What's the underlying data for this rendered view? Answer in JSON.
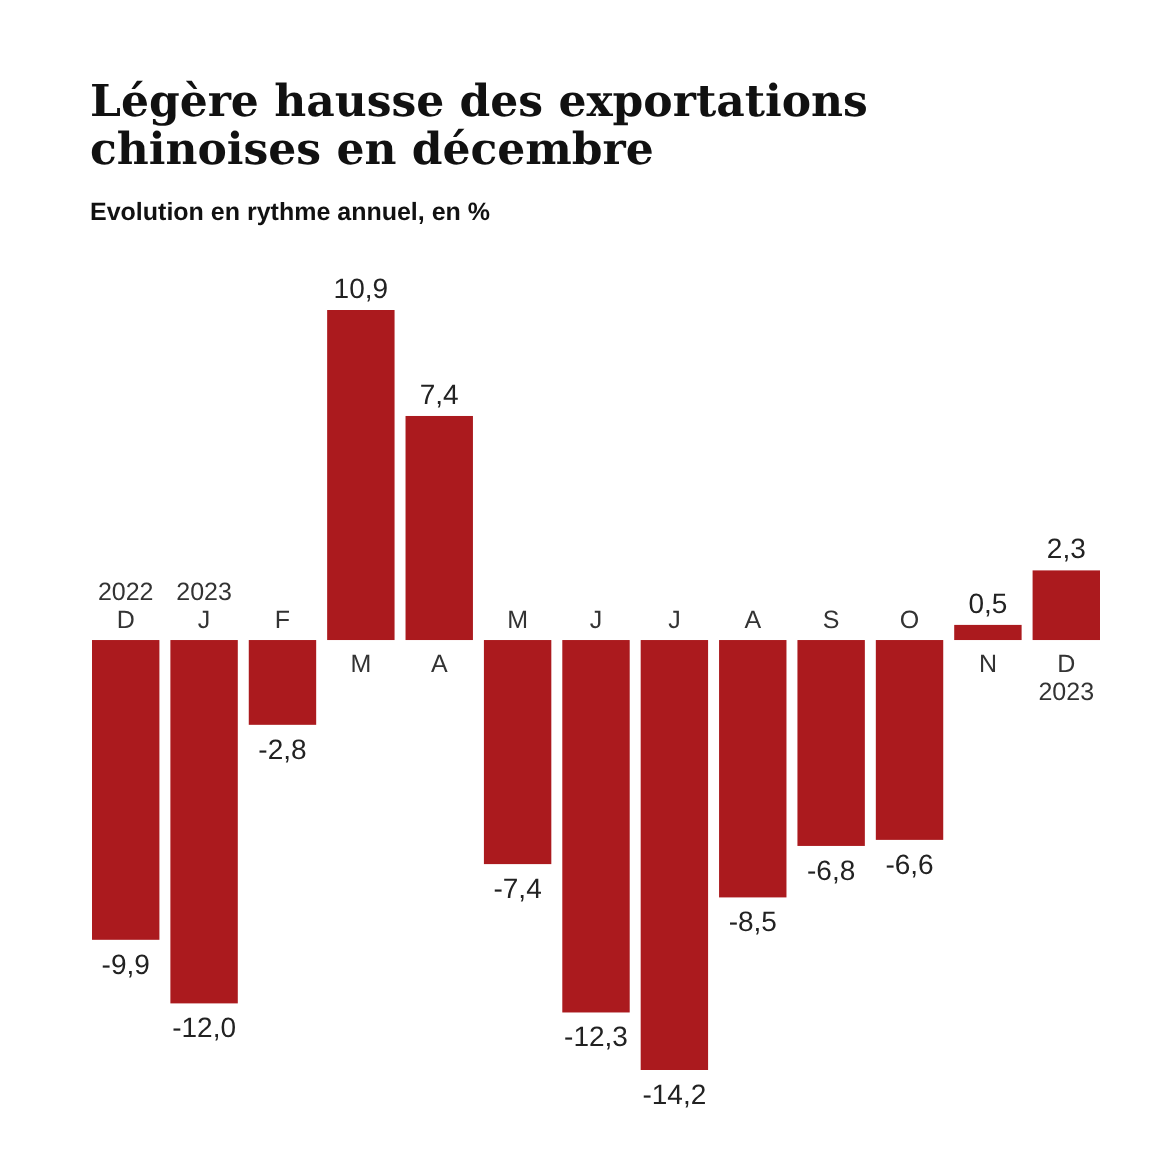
{
  "chart_data": {
    "type": "bar",
    "title": "Légère hausse des exportations chinoises en décembre",
    "subtitle": "Evolution en rythme annuel, en %",
    "categories": [
      "2022\nD",
      "2023\nJ",
      "F",
      "M",
      "A",
      "M",
      "J",
      "J",
      "A",
      "S",
      "O",
      "N",
      "D\n2023"
    ],
    "values": [
      -9.9,
      -12.0,
      -2.8,
      10.9,
      7.4,
      -7.4,
      -12.3,
      -14.2,
      -8.5,
      -6.8,
      -6.6,
      0.5,
      2.3
    ],
    "value_labels": [
      "-9,9",
      "-12,0",
      "-2,8",
      "10,9",
      "7,4",
      "-7,4",
      "-12,3",
      "-14,2",
      "-8,5",
      "-6,8",
      "-6,6",
      "0,5",
      "2,3"
    ],
    "color": "#ab1a1e"
  }
}
